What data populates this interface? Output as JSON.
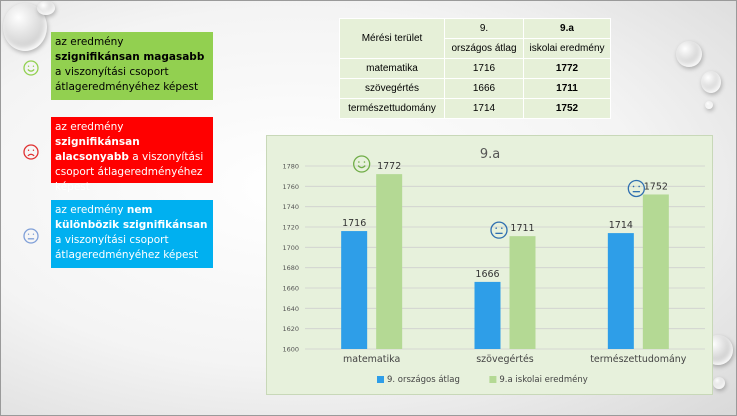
{
  "legend_items": [
    {
      "parts": [
        {
          "text": "az eredmény ",
          "bold": false
        },
        {
          "text": "szignifikánsan magasabb",
          "bold": true
        },
        {
          "text": " a viszonyítási csoport átlageredményéhez képest",
          "bold": false
        }
      ],
      "bg": "#92d050",
      "fg": "#000000",
      "face": "happy",
      "face_color": "#92d050"
    },
    {
      "parts": [
        {
          "text": "az eredmény ",
          "bold": false
        },
        {
          "text": "szignifikánsan alacsonyabb",
          "bold": true
        },
        {
          "text": " a viszonyítási csoport átlageredményéhez képest",
          "bold": false
        }
      ],
      "bg": "#ff0000",
      "fg": "#ffffff",
      "face": "sad",
      "face_color": "#e03030"
    },
    {
      "parts": [
        {
          "text": "az eredmény ",
          "bold": false
        },
        {
          "text": "nem különbözik szignifikánsan",
          "bold": true
        },
        {
          "text": " a viszonyítási csoport átlageredményéhez képest",
          "bold": false
        }
      ],
      "bg": "#00b0f0",
      "fg": "#ffffff",
      "face": "neutral",
      "face_color": "#7f9fd8"
    }
  ],
  "table": {
    "header1": [
      "Mérési terület",
      "9.",
      "9.a"
    ],
    "header2": [
      "országos átlag",
      "iskolai eredmény"
    ],
    "rows": [
      {
        "area": "matematika",
        "national": "1716",
        "school": "1772"
      },
      {
        "area": "szövegértés",
        "national": "1666",
        "school": "1711"
      },
      {
        "area": "természettudomány",
        "national": "1714",
        "school": "1752"
      }
    ]
  },
  "chart_data": {
    "type": "bar",
    "title": "9.a",
    "categories": [
      "matematika",
      "szövegértés",
      "természettudomány"
    ],
    "series": [
      {
        "name": "9. országos átlag",
        "values": [
          1716,
          1666,
          1714
        ],
        "color": "#2e9ee8"
      },
      {
        "name": "9.a iskolai eredmény",
        "values": [
          1772,
          1711,
          1752
        ],
        "color": "#b4d994"
      }
    ],
    "ylim": [
      1600,
      1780
    ],
    "yticks": [
      1600,
      1620,
      1640,
      1660,
      1680,
      1700,
      1720,
      1740,
      1760,
      1780
    ],
    "grid": true,
    "legend": "bottom",
    "annotations": [
      {
        "category": "matematika",
        "face": "happy",
        "color": "#70ad47"
      },
      {
        "category": "szövegértés",
        "face": "neutral",
        "color": "#2f6fb0"
      },
      {
        "category": "természettudomány",
        "face": "neutral",
        "color": "#2f6fb0"
      }
    ]
  }
}
